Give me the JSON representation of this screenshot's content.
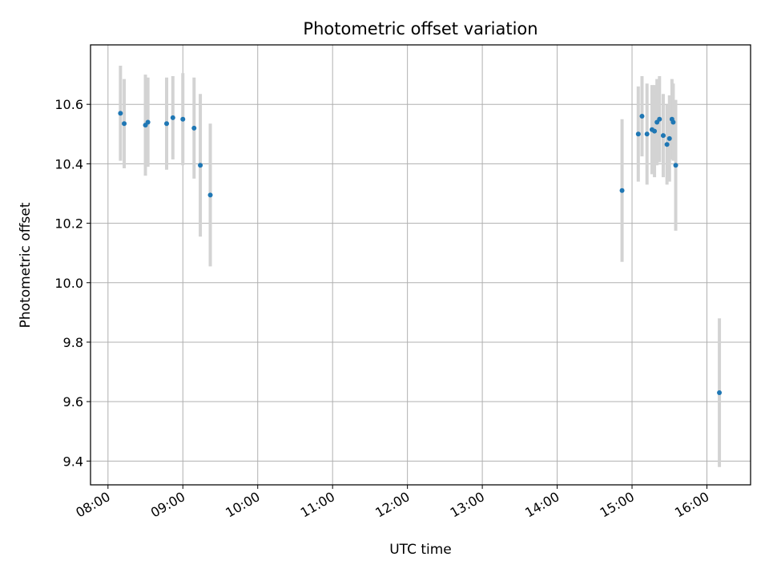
{
  "chart_data": {
    "type": "scatter",
    "title": "Photometric offset variation",
    "xlabel": "UTC time",
    "ylabel": "Photometric offset",
    "x_ticks": [
      "08:00",
      "09:00",
      "10:00",
      "11:00",
      "12:00",
      "13:00",
      "14:00",
      "15:00",
      "16:00"
    ],
    "y_ticks": [
      "9.4",
      "9.6",
      "9.8",
      "10.0",
      "10.2",
      "10.4",
      "10.6"
    ],
    "xlim": [
      "07:46",
      "16:35"
    ],
    "ylim": [
      9.32,
      10.8
    ],
    "grid": true,
    "colors": {
      "point": "#1f77b4",
      "errorbar": "#d3d3d3",
      "grid": "#b0b0b0"
    },
    "series": [
      {
        "x": [
          "08:10",
          "08:13",
          "08:30",
          "08:32",
          "08:47",
          "08:52",
          "09:00",
          "09:09",
          "09:14",
          "09:22",
          "14:52",
          "15:05",
          "15:08",
          "15:12",
          "15:16",
          "15:18",
          "15:20",
          "15:22",
          "15:25",
          "15:28",
          "15:30",
          "15:32",
          "15:33",
          "15:35",
          "16:10"
        ],
        "y": [
          10.57,
          10.535,
          10.53,
          10.54,
          10.535,
          10.555,
          10.55,
          10.52,
          10.395,
          10.295,
          10.31,
          10.5,
          10.56,
          10.5,
          10.515,
          10.51,
          10.54,
          10.55,
          10.495,
          10.465,
          10.485,
          10.55,
          10.54,
          10.395,
          9.63
        ],
        "yerr": [
          0.16,
          0.15,
          0.17,
          0.15,
          0.155,
          0.14,
          0.155,
          0.17,
          0.24,
          0.24,
          0.24,
          0.16,
          0.135,
          0.17,
          0.15,
          0.155,
          0.145,
          0.145,
          0.14,
          0.135,
          0.145,
          0.135,
          0.13,
          0.22,
          0.25
        ]
      }
    ]
  }
}
